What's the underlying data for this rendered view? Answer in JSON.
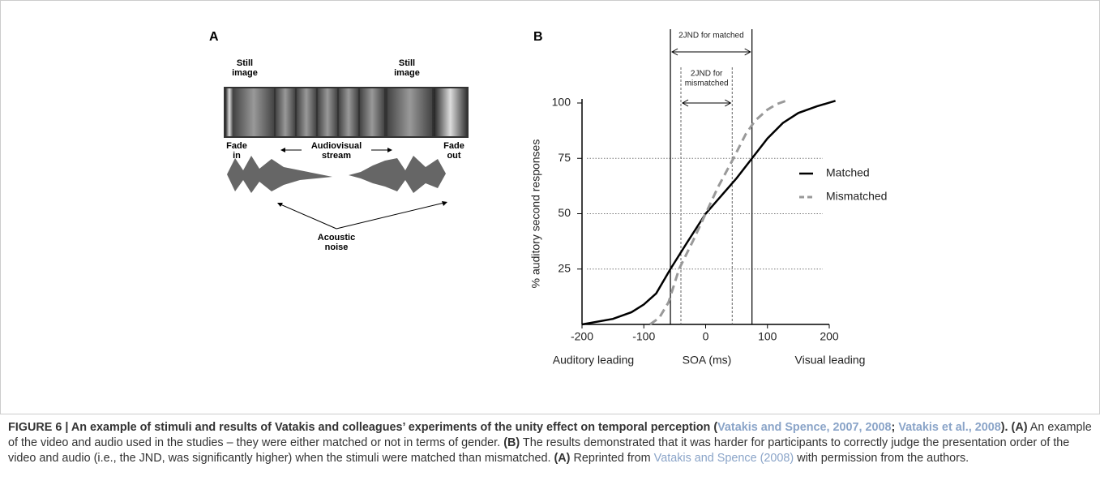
{
  "panel_a": {
    "letter": "A",
    "still_left": [
      "Still",
      "image"
    ],
    "still_right": [
      "Still",
      "image"
    ],
    "fade_in": [
      "Fade",
      "in"
    ],
    "stream": [
      "Audiovisual",
      "stream"
    ],
    "fade_out": [
      "Fade",
      "out"
    ],
    "noise": [
      "Acoustic",
      "noise"
    ]
  },
  "chart_data": {
    "type": "line",
    "letter": "B",
    "y_label": "% auditory second responses",
    "x_labels": [
      "Auditory leading",
      "SOA (ms)",
      "Visual leading"
    ],
    "xlim": [
      -200,
      200
    ],
    "xticks": [
      -200,
      -100,
      0,
      100,
      200
    ],
    "ylim": [
      0,
      100
    ],
    "yticks": [
      25,
      50,
      75,
      100
    ],
    "grid": true,
    "series": [
      {
        "name": "Matched",
        "color": "#000000",
        "dashed": false,
        "x": [
          -200,
          -150,
          -120,
          -100,
          -80,
          -57,
          -30,
          0,
          25,
          50,
          75,
          100,
          125,
          150,
          180,
          210
        ],
        "values": [
          0,
          2.5,
          5.5,
          9,
          14,
          25,
          37,
          50,
          58,
          66,
          75,
          84,
          91,
          95.5,
          98.5,
          101
        ]
      },
      {
        "name": "Mismatched",
        "color": "#999999",
        "dashed": true,
        "x": [
          -90,
          -75,
          -60,
          -43,
          -20,
          0,
          20,
          45,
          65,
          80,
          100,
          115,
          130
        ],
        "values": [
          0,
          3,
          10,
          25,
          38,
          50,
          62,
          75,
          86,
          92,
          97,
          99.5,
          101
        ]
      }
    ],
    "jnd": [
      {
        "label": [
          "2JND  for matched"
        ],
        "lo": -57,
        "hi": 75,
        "solid": true
      },
      {
        "label": [
          "2JND  for",
          "mismatched"
        ],
        "lo": -40,
        "hi": 43,
        "solid": false
      }
    ]
  },
  "caption": {
    "segments": [
      {
        "text": "FIGURE 6 | An example of stimuli and results of Vatakis and colleagues’ experiments of the unity effect on temporal perception (",
        "style": "bold"
      },
      {
        "text": "Vatakis and Spence, 2007, 2008",
        "style": "bold-link"
      },
      {
        "text": "; ",
        "style": "bold"
      },
      {
        "text": "Vatakis et al., 2008",
        "style": "bold-link"
      },
      {
        "text": "). (A)",
        "style": "bold"
      },
      {
        "text": " An example of the video and audio used in the studies – they were either matched or not in terms of gender. ",
        "style": "normal"
      },
      {
        "text": "(B)",
        "style": "bold"
      },
      {
        "text": " The results demonstrated that it was harder for participants to correctly judge the presentation order of the video and audio (i.e., the JND, was significantly higher) when the stimuli were matched than mismatched. ",
        "style": "normal"
      },
      {
        "text": "(A)",
        "style": "bold"
      },
      {
        "text": " Reprinted from ",
        "style": "normal"
      },
      {
        "text": "Vatakis and Spence (2008)",
        "style": "link"
      },
      {
        "text": " with permission from the authors.",
        "style": "normal"
      }
    ]
  }
}
